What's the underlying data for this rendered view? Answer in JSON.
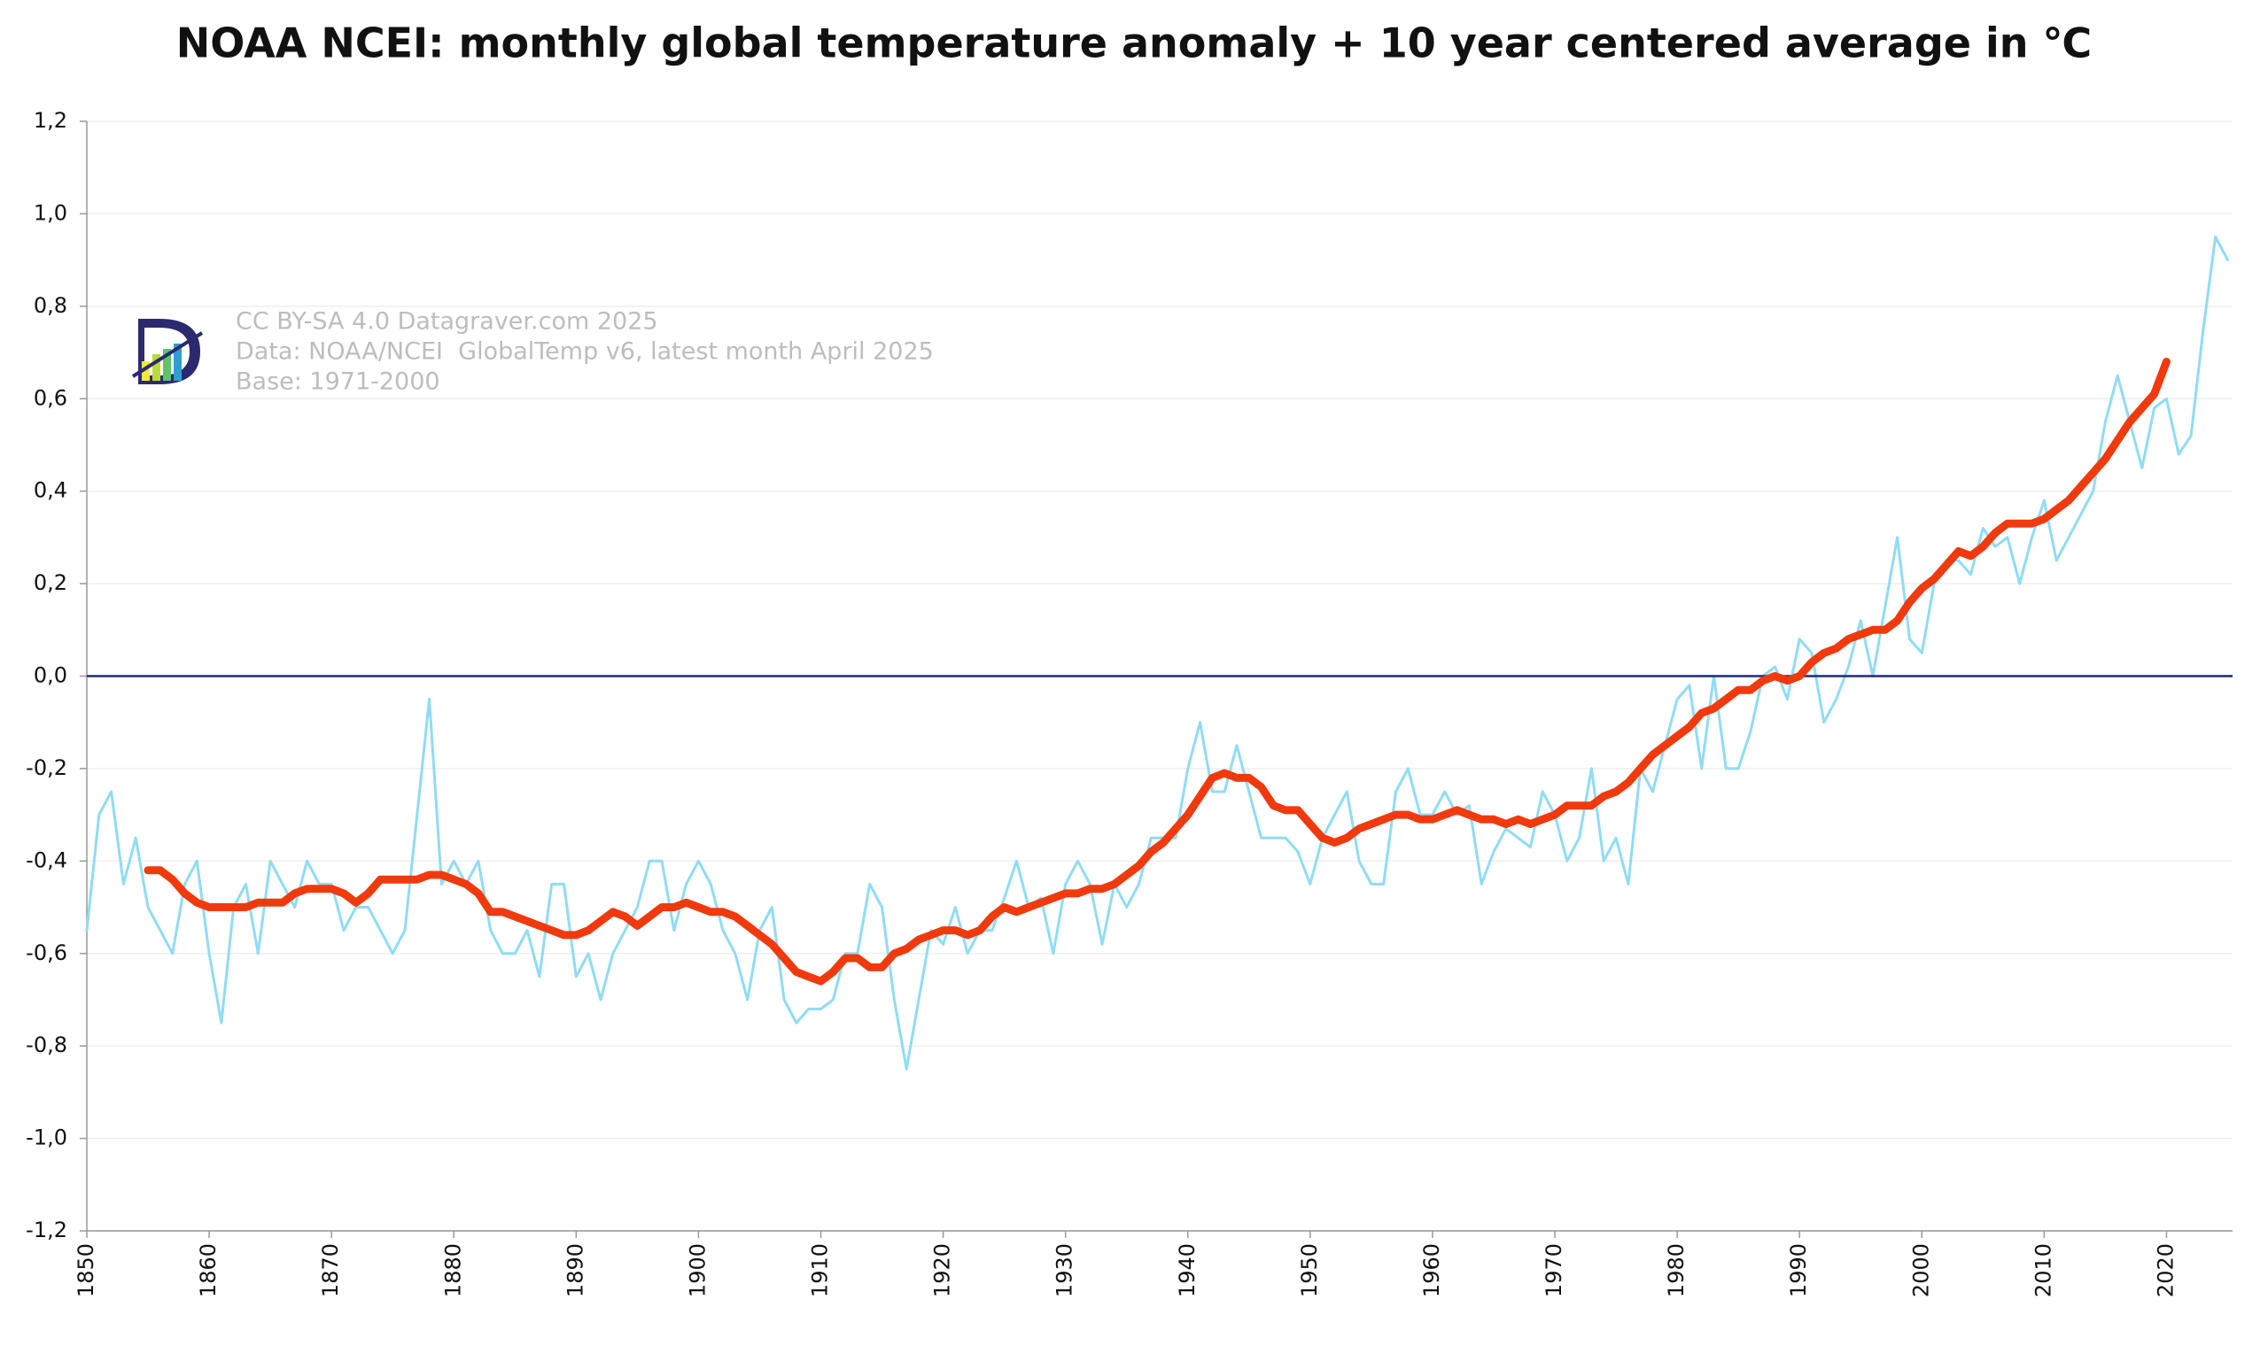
{
  "chart_data": {
    "type": "line",
    "title": "NOAA NCEI: monthly global temperature anomaly + 10 year centered average in ℃",
    "annotations": [
      "CC BY-SA 4.0 Datagraver.com 2025",
      "Data: NOAA/NCEI  GlobalTemp v6, latest month April 2025",
      "Base: 1971-2000"
    ],
    "xlim": [
      1850,
      2025.4
    ],
    "xticks": [
      1850,
      1860,
      1870,
      1880,
      1890,
      1900,
      1910,
      1920,
      1930,
      1940,
      1950,
      1960,
      1970,
      1980,
      1990,
      2000,
      2010,
      2020
    ],
    "ylim": [
      -1.2,
      1.2
    ],
    "yticks": [
      {
        "value": -1.2,
        "label": "-1,2"
      },
      {
        "value": -1.0,
        "label": "-1,0"
      },
      {
        "value": -0.8,
        "label": "-0,8"
      },
      {
        "value": -0.6,
        "label": "-0,6"
      },
      {
        "value": -0.4,
        "label": "-0,4"
      },
      {
        "value": -0.2,
        "label": "-0,2"
      },
      {
        "value": 0,
        "label": "0,0"
      },
      {
        "value": 0.2,
        "label": "0,2"
      },
      {
        "value": 0.4,
        "label": "0,4"
      },
      {
        "value": 0.6,
        "label": "0,6"
      },
      {
        "value": 0.8,
        "label": "0,8"
      },
      {
        "value": 1.0,
        "label": "1,0"
      },
      {
        "value": 1.2,
        "label": "1,2"
      }
    ],
    "grid": true,
    "zero_line_color": "#1f2a7a",
    "series": [
      {
        "color": "#8fdcf5",
        "width": 3,
        "x": [
          1850,
          1851,
          1852,
          1853,
          1854,
          1855,
          1856,
          1857,
          1858,
          1859,
          1860,
          1861,
          1862,
          1863,
          1864,
          1865,
          1866,
          1867,
          1868,
          1869,
          1870,
          1871,
          1872,
          1873,
          1874,
          1875,
          1876,
          1877,
          1878,
          1879,
          1880,
          1881,
          1882,
          1883,
          1884,
          1885,
          1886,
          1887,
          1888,
          1889,
          1890,
          1891,
          1892,
          1893,
          1894,
          1895,
          1896,
          1897,
          1898,
          1899,
          1900,
          1901,
          1902,
          1903,
          1904,
          1905,
          1906,
          1907,
          1908,
          1909,
          1910,
          1911,
          1912,
          1913,
          1914,
          1915,
          1916,
          1917,
          1918,
          1919,
          1920,
          1921,
          1922,
          1923,
          1924,
          1925,
          1926,
          1927,
          1928,
          1929,
          1930,
          1931,
          1932,
          1933,
          1934,
          1935,
          1936,
          1937,
          1938,
          1939,
          1940,
          1941,
          1942,
          1943,
          1944,
          1945,
          1946,
          1947,
          1948,
          1949,
          1950,
          1951,
          1952,
          1953,
          1954,
          1955,
          1956,
          1957,
          1958,
          1959,
          1960,
          1961,
          1962,
          1963,
          1964,
          1965,
          1966,
          1967,
          1968,
          1969,
          1970,
          1971,
          1972,
          1973,
          1974,
          1975,
          1976,
          1977,
          1978,
          1979,
          1980,
          1981,
          1982,
          1983,
          1984,
          1985,
          1986,
          1987,
          1988,
          1989,
          1990,
          1991,
          1992,
          1993,
          1994,
          1995,
          1996,
          1997,
          1998,
          1999,
          2000,
          2001,
          2002,
          2003,
          2004,
          2005,
          2006,
          2007,
          2008,
          2009,
          2010,
          2011,
          2012,
          2013,
          2014,
          2015,
          2016,
          2017,
          2018,
          2019,
          2020,
          2021,
          2022,
          2023,
          2024,
          2025
        ],
        "values": [
          -0.55,
          -0.3,
          -0.25,
          -0.45,
          -0.35,
          -0.5,
          -0.55,
          -0.6,
          -0.45,
          -0.4,
          -0.6,
          -0.75,
          -0.5,
          -0.45,
          -0.6,
          -0.4,
          -0.45,
          -0.5,
          -0.4,
          -0.45,
          -0.45,
          -0.55,
          -0.5,
          -0.5,
          -0.55,
          -0.6,
          -0.55,
          -0.3,
          -0.05,
          -0.45,
          -0.4,
          -0.45,
          -0.4,
          -0.55,
          -0.6,
          -0.6,
          -0.55,
          -0.65,
          -0.45,
          -0.45,
          -0.65,
          -0.6,
          -0.7,
          -0.6,
          -0.55,
          -0.5,
          -0.4,
          -0.4,
          -0.55,
          -0.45,
          -0.4,
          -0.45,
          -0.55,
          -0.6,
          -0.7,
          -0.55,
          -0.5,
          -0.7,
          -0.75,
          -0.72,
          -0.72,
          -0.7,
          -0.6,
          -0.6,
          -0.45,
          -0.5,
          -0.7,
          -0.85,
          -0.7,
          -0.55,
          -0.58,
          -0.5,
          -0.6,
          -0.55,
          -0.55,
          -0.48,
          -0.4,
          -0.5,
          -0.48,
          -0.6,
          -0.45,
          -0.4,
          -0.45,
          -0.58,
          -0.45,
          -0.5,
          -0.45,
          -0.35,
          -0.35,
          -0.35,
          -0.2,
          -0.1,
          -0.25,
          -0.25,
          -0.15,
          -0.25,
          -0.35,
          -0.35,
          -0.35,
          -0.38,
          -0.45,
          -0.35,
          -0.3,
          -0.25,
          -0.4,
          -0.45,
          -0.45,
          -0.25,
          -0.2,
          -0.3,
          -0.3,
          -0.25,
          -0.3,
          -0.28,
          -0.45,
          -0.38,
          -0.33,
          -0.35,
          -0.37,
          -0.25,
          -0.3,
          -0.4,
          -0.35,
          -0.2,
          -0.4,
          -0.35,
          -0.45,
          -0.2,
          -0.25,
          -0.15,
          -0.05,
          -0.02,
          -0.2,
          0.0,
          -0.2,
          -0.2,
          -0.12,
          0.0,
          0.02,
          -0.05,
          0.08,
          0.05,
          -0.1,
          -0.05,
          0.02,
          0.12,
          0.0,
          0.15,
          0.3,
          0.08,
          0.05,
          0.2,
          0.25,
          0.25,
          0.22,
          0.32,
          0.28,
          0.3,
          0.2,
          0.3,
          0.38,
          0.25,
          0.3,
          0.35,
          0.4,
          0.55,
          0.65,
          0.55,
          0.45,
          0.58,
          0.6,
          0.48,
          0.52,
          0.75,
          0.95,
          0.9
        ]
      },
      {
        "color": "#f03a0e",
        "width": 9,
        "x": [
          1855,
          1856,
          1857,
          1858,
          1859,
          1860,
          1861,
          1862,
          1863,
          1864,
          1865,
          1866,
          1867,
          1868,
          1869,
          1870,
          1871,
          1872,
          1873,
          1874,
          1875,
          1876,
          1877,
          1878,
          1879,
          1880,
          1881,
          1882,
          1883,
          1884,
          1885,
          1886,
          1887,
          1888,
          1889,
          1890,
          1891,
          1892,
          1893,
          1894,
          1895,
          1896,
          1897,
          1898,
          1899,
          1900,
          1901,
          1902,
          1903,
          1904,
          1905,
          1906,
          1907,
          1908,
          1909,
          1910,
          1911,
          1912,
          1913,
          1914,
          1915,
          1916,
          1917,
          1918,
          1919,
          1920,
          1921,
          1922,
          1923,
          1924,
          1925,
          1926,
          1927,
          1928,
          1929,
          1930,
          1931,
          1932,
          1933,
          1934,
          1935,
          1936,
          1937,
          1938,
          1939,
          1940,
          1941,
          1942,
          1943,
          1944,
          1945,
          1946,
          1947,
          1948,
          1949,
          1950,
          1951,
          1952,
          1953,
          1954,
          1955,
          1956,
          1957,
          1958,
          1959,
          1960,
          1961,
          1962,
          1963,
          1964,
          1965,
          1966,
          1967,
          1968,
          1969,
          1970,
          1971,
          1972,
          1973,
          1974,
          1975,
          1976,
          1977,
          1978,
          1979,
          1980,
          1981,
          1982,
          1983,
          1984,
          1985,
          1986,
          1987,
          1988,
          1989,
          1990,
          1991,
          1992,
          1993,
          1994,
          1995,
          1996,
          1997,
          1998,
          1999,
          2000,
          2001,
          2002,
          2003,
          2004,
          2005,
          2006,
          2007,
          2008,
          2009,
          2010,
          2011,
          2012,
          2013,
          2014,
          2015,
          2016,
          2017,
          2018,
          2019,
          2020
        ],
        "values": [
          -0.42,
          -0.42,
          -0.44,
          -0.47,
          -0.49,
          -0.5,
          -0.5,
          -0.5,
          -0.5,
          -0.49,
          -0.49,
          -0.49,
          -0.47,
          -0.46,
          -0.46,
          -0.46,
          -0.47,
          -0.49,
          -0.47,
          -0.44,
          -0.44,
          -0.44,
          -0.44,
          -0.43,
          -0.43,
          -0.44,
          -0.45,
          -0.47,
          -0.51,
          -0.51,
          -0.52,
          -0.53,
          -0.54,
          -0.55,
          -0.56,
          -0.56,
          -0.55,
          -0.53,
          -0.51,
          -0.52,
          -0.54,
          -0.52,
          -0.5,
          -0.5,
          -0.49,
          -0.5,
          -0.51,
          -0.51,
          -0.52,
          -0.54,
          -0.56,
          -0.58,
          -0.61,
          -0.64,
          -0.65,
          -0.66,
          -0.64,
          -0.61,
          -0.61,
          -0.63,
          -0.63,
          -0.6,
          -0.59,
          -0.57,
          -0.56,
          -0.55,
          -0.55,
          -0.56,
          -0.55,
          -0.52,
          -0.5,
          -0.51,
          -0.5,
          -0.49,
          -0.48,
          -0.47,
          -0.47,
          -0.46,
          -0.46,
          -0.45,
          -0.43,
          -0.41,
          -0.38,
          -0.36,
          -0.33,
          -0.3,
          -0.26,
          -0.22,
          -0.21,
          -0.22,
          -0.22,
          -0.24,
          -0.28,
          -0.29,
          -0.29,
          -0.32,
          -0.35,
          -0.36,
          -0.35,
          -0.33,
          -0.32,
          -0.31,
          -0.3,
          -0.3,
          -0.31,
          -0.31,
          -0.3,
          -0.29,
          -0.3,
          -0.31,
          -0.31,
          -0.32,
          -0.31,
          -0.32,
          -0.31,
          -0.3,
          -0.28,
          -0.28,
          -0.28,
          -0.26,
          -0.25,
          -0.23,
          -0.2,
          -0.17,
          -0.15,
          -0.13,
          -0.11,
          -0.08,
          -0.07,
          -0.05,
          -0.03,
          -0.03,
          -0.01,
          0.0,
          -0.01,
          0.0,
          0.03,
          0.05,
          0.06,
          0.08,
          0.09,
          0.1,
          0.1,
          0.12,
          0.16,
          0.19,
          0.21,
          0.24,
          0.27,
          0.26,
          0.28,
          0.31,
          0.33,
          0.33,
          0.33,
          0.34,
          0.36,
          0.38,
          0.41,
          0.44,
          0.47,
          0.51,
          0.55,
          0.58,
          0.61,
          0.68
        ]
      }
    ]
  }
}
